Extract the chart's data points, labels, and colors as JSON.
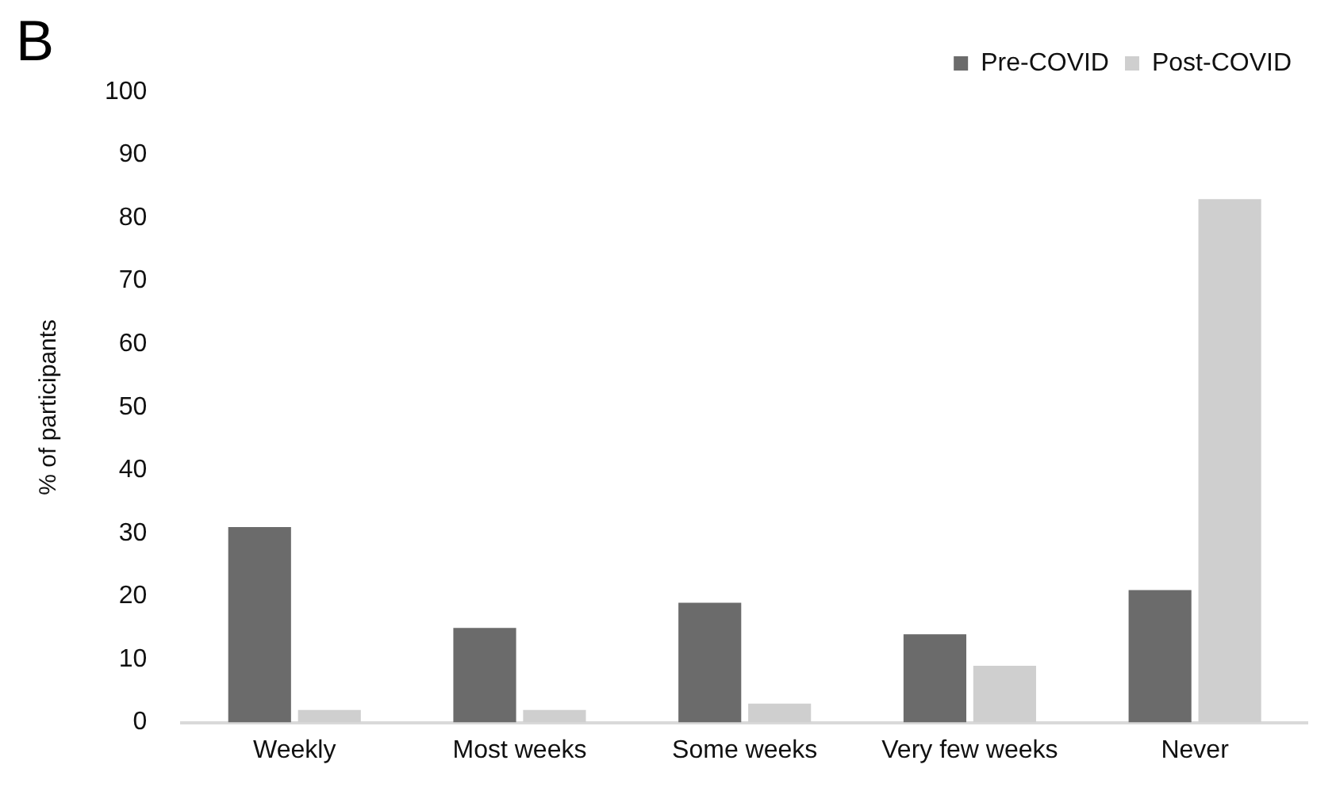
{
  "chart_data": {
    "type": "bar",
    "annotations": [
      "B"
    ],
    "ylabel": "% of participants",
    "categories": [
      "Weekly",
      "Most weeks",
      "Some weeks",
      "Very few weeks",
      "Never"
    ],
    "series": [
      {
        "name": "Pre-COVID",
        "color": "#6b6b6b",
        "values": [
          31,
          15,
          19,
          14,
          21
        ]
      },
      {
        "name": "Post-COVID",
        "color": "#cfcfcf",
        "values": [
          2,
          2,
          3,
          9,
          83
        ]
      }
    ],
    "ylim": [
      0,
      100
    ],
    "yticks": [
      0,
      10,
      20,
      30,
      40,
      50,
      60,
      70,
      80,
      90,
      100
    ],
    "grid": false,
    "legend": "top right"
  }
}
